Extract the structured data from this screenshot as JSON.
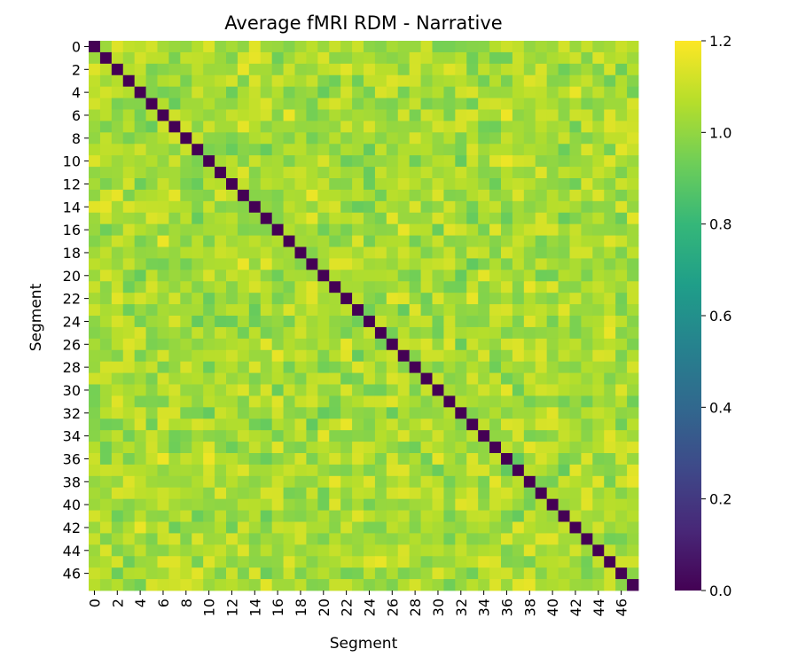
{
  "chart_data": {
    "type": "heatmap",
    "title": "Average fMRI RDM - Narrative",
    "xlabel": "Segment",
    "ylabel": "Segment",
    "n": 48,
    "tick_labels": [
      "0",
      "2",
      "4",
      "6",
      "8",
      "10",
      "12",
      "14",
      "16",
      "18",
      "20",
      "22",
      "24",
      "26",
      "28",
      "30",
      "32",
      "34",
      "36",
      "38",
      "40",
      "42",
      "44",
      "46"
    ],
    "colorbar": {
      "min": 0.0,
      "max": 1.2,
      "ticks": [
        "0.0",
        "0.2",
        "0.4",
        "0.6",
        "0.8",
        "1.0",
        "1.2"
      ],
      "colormap": "viridis"
    },
    "diagonal_value": 0.0,
    "off_diagonal_range": [
      0.9,
      1.18
    ],
    "colors": {
      "viridis": [
        "#440154",
        "#482878",
        "#3e4989",
        "#31688e",
        "#26828e",
        "#1f9e89",
        "#35b779",
        "#6ece58",
        "#b5de2b",
        "#fde725"
      ]
    }
  }
}
